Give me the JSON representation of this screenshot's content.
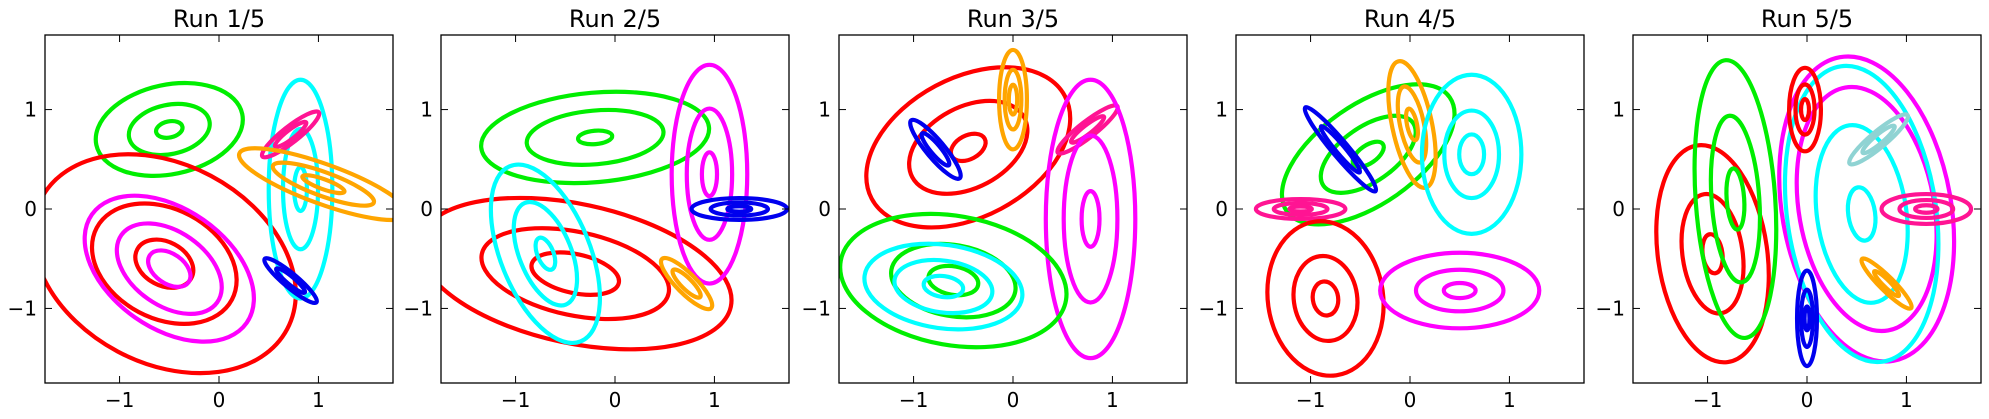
{
  "chart_data": [
    {
      "type": "contour",
      "title": "Run 1/5",
      "xlim": [
        -1.75,
        1.75
      ],
      "ylim": [
        -1.75,
        1.75
      ],
      "xticks": [
        -1,
        0,
        1
      ],
      "yticks": [
        -1,
        0,
        1
      ],
      "xtick_labels": [
        "−1",
        "0",
        "1"
      ],
      "ytick_labels": [
        "−1",
        "0",
        "1"
      ],
      "components": [
        {
          "color": "#00ee00",
          "center": [
            -0.5,
            0.8
          ],
          "rx": 0.75,
          "ry": 0.45,
          "angle_deg": 12,
          "scales": [
            1,
            0.55,
            0.18
          ]
        },
        {
          "color": "#ff0000",
          "center": [
            -0.55,
            -0.55
          ],
          "rx": 1.4,
          "ry": 1.0,
          "angle_deg": -28,
          "scales": [
            1,
            0.55,
            0.22
          ]
        },
        {
          "color": "#ff00ff",
          "center": [
            -0.5,
            -0.6
          ],
          "rx": 0.95,
          "ry": 0.6,
          "angle_deg": -35,
          "scales": [
            1,
            0.62,
            0.25
          ]
        },
        {
          "color": "#00ffff",
          "center": [
            0.82,
            0.2
          ],
          "rx": 0.32,
          "ry": 1.1,
          "angle_deg": 0,
          "scales": [
            1,
            0.55,
            0.2
          ]
        },
        {
          "color": "#ff1493",
          "center": [
            0.72,
            0.75
          ],
          "rx": 0.36,
          "ry": 0.08,
          "angle_deg": 38,
          "scales": [
            1,
            0.55
          ]
        },
        {
          "color": "#ffa500",
          "center": [
            1.05,
            0.25
          ],
          "rx": 0.9,
          "ry": 0.2,
          "angle_deg": -20,
          "scales": [
            1,
            0.6,
            0.25
          ]
        },
        {
          "color": "#0000ee",
          "center": [
            0.72,
            -0.72
          ],
          "rx": 0.34,
          "ry": 0.07,
          "angle_deg": -40,
          "scales": [
            1,
            0.55
          ]
        }
      ]
    },
    {
      "type": "contour",
      "title": "Run 2/5",
      "xlim": [
        -1.75,
        1.75
      ],
      "ylim": [
        -1.75,
        1.75
      ],
      "xticks": [
        -1,
        0,
        1
      ],
      "yticks": [
        -1,
        0,
        1
      ],
      "xtick_labels": [
        "−1",
        "0",
        "1"
      ],
      "ytick_labels": [
        "−1",
        "0",
        "1"
      ],
      "components": [
        {
          "color": "#00ee00",
          "center": [
            -0.2,
            0.72
          ],
          "rx": 1.15,
          "ry": 0.45,
          "angle_deg": 5,
          "scales": [
            1,
            0.6,
            0.15
          ]
        },
        {
          "color": "#ff0000",
          "center": [
            -0.4,
            -0.65
          ],
          "rx": 1.6,
          "ry": 0.7,
          "angle_deg": -12,
          "scales": [
            1,
            0.6,
            0.28
          ]
        },
        {
          "color": "#00ffff",
          "center": [
            -0.7,
            -0.45
          ],
          "rx": 0.45,
          "ry": 0.95,
          "angle_deg": 22,
          "scales": [
            1,
            0.58,
            0.18
          ]
        },
        {
          "color": "#ff00ff",
          "center": [
            0.95,
            0.35
          ],
          "rx": 0.38,
          "ry": 1.1,
          "angle_deg": 0,
          "scales": [
            1,
            0.6,
            0.2
          ]
        },
        {
          "color": "#ffa500",
          "center": [
            0.72,
            -0.75
          ],
          "rx": 0.35,
          "ry": 0.1,
          "angle_deg": -45,
          "scales": [
            1,
            0.55
          ]
        },
        {
          "color": "#0000ee",
          "center": [
            1.25,
            0.0
          ],
          "rx": 0.48,
          "ry": 0.11,
          "angle_deg": 0,
          "scales": [
            1,
            0.6,
            0.25
          ]
        }
      ]
    },
    {
      "type": "contour",
      "title": "Run 3/5",
      "xlim": [
        -1.75,
        1.75
      ],
      "ylim": [
        -1.75,
        1.75
      ],
      "xticks": [
        -1,
        0,
        1
      ],
      "yticks": [
        -1,
        0,
        1
      ],
      "xtick_labels": [
        "−1",
        "0",
        "1"
      ],
      "ytick_labels": [
        "−1",
        "0",
        "1"
      ],
      "components": [
        {
          "color": "#ff0000",
          "center": [
            -0.45,
            0.62
          ],
          "rx": 1.1,
          "ry": 0.7,
          "angle_deg": 28,
          "scales": [
            1,
            0.58,
            0.17
          ]
        },
        {
          "color": "#0000ee",
          "center": [
            -0.78,
            0.6
          ],
          "rx": 0.38,
          "ry": 0.09,
          "angle_deg": -50,
          "scales": [
            1,
            0.55
          ]
        },
        {
          "color": "#ffa500",
          "center": [
            0.0,
            1.1
          ],
          "rx": 0.14,
          "ry": 0.5,
          "angle_deg": 0,
          "scales": [
            1,
            0.6,
            0.3
          ]
        },
        {
          "color": "#ff1493",
          "center": [
            0.75,
            0.8
          ],
          "rx": 0.38,
          "ry": 0.08,
          "angle_deg": 38,
          "scales": [
            1,
            0.55
          ]
        },
        {
          "color": "#ff00ff",
          "center": [
            0.78,
            -0.1
          ],
          "rx": 0.45,
          "ry": 1.4,
          "angle_deg": 0,
          "scales": [
            1,
            0.6,
            0.2
          ]
        },
        {
          "color": "#00ee00",
          "center": [
            -0.6,
            -0.72
          ],
          "rx": 1.15,
          "ry": 0.65,
          "angle_deg": -10,
          "scales": [
            1,
            0.55,
            0.22
          ]
        },
        {
          "color": "#00ffff",
          "center": [
            -0.7,
            -0.78
          ],
          "rx": 0.8,
          "ry": 0.42,
          "angle_deg": -8,
          "scales": [
            1,
            0.62,
            0.25
          ]
        }
      ]
    },
    {
      "type": "contour",
      "title": "Run 4/5",
      "xlim": [
        -1.75,
        1.75
      ],
      "ylim": [
        -1.75,
        1.75
      ],
      "xticks": [
        -1,
        0,
        1
      ],
      "yticks": [
        -1,
        0,
        1
      ],
      "xtick_labels": [
        "−1",
        "0",
        "1"
      ],
      "ytick_labels": [
        "−1",
        "0",
        "1"
      ],
      "components": [
        {
          "color": "#00ee00",
          "center": [
            -0.42,
            0.55
          ],
          "rx": 1.0,
          "ry": 0.5,
          "angle_deg": 35,
          "scales": [
            1,
            0.55,
            0.18
          ]
        },
        {
          "color": "#0000ee",
          "center": [
            -0.7,
            0.6
          ],
          "rx": 0.55,
          "ry": 0.08,
          "angle_deg": -50,
          "scales": [
            1,
            0.55
          ]
        },
        {
          "color": "#ffa500",
          "center": [
            0.02,
            0.85
          ],
          "rx": 0.2,
          "ry": 0.65,
          "angle_deg": 12,
          "scales": [
            1,
            0.6,
            0.25
          ]
        },
        {
          "color": "#00ffff",
          "center": [
            0.62,
            0.55
          ],
          "rx": 0.5,
          "ry": 0.8,
          "angle_deg": 0,
          "scales": [
            1,
            0.55,
            0.25
          ]
        },
        {
          "color": "#ff1493",
          "center": [
            -1.1,
            0.0
          ],
          "rx": 0.45,
          "ry": 0.1,
          "angle_deg": 0,
          "scales": [
            1,
            0.6,
            0.25
          ]
        },
        {
          "color": "#ff0000",
          "center": [
            -0.85,
            -0.9
          ],
          "rx": 0.58,
          "ry": 0.78,
          "angle_deg": 8,
          "scales": [
            1,
            0.55,
            0.22
          ]
        },
        {
          "color": "#ff00ff",
          "center": [
            0.5,
            -0.82
          ],
          "rx": 0.8,
          "ry": 0.38,
          "angle_deg": 0,
          "scales": [
            1,
            0.55,
            0.2
          ]
        }
      ]
    },
    {
      "type": "contour",
      "title": "Run 5/5",
      "xlim": [
        -1.75,
        1.75
      ],
      "ylim": [
        -1.75,
        1.75
      ],
      "xticks": [
        -1,
        0,
        1
      ],
      "yticks": [
        -1,
        0,
        1
      ],
      "xtick_labels": [
        "−1",
        "0",
        "1"
      ],
      "ytick_labels": [
        "−1",
        "0",
        "1"
      ],
      "components": [
        {
          "color": "#ff0000",
          "center": [
            -0.95,
            -0.45
          ],
          "rx": 0.55,
          "ry": 1.1,
          "angle_deg": 8,
          "scales": [
            1,
            0.55,
            0.18
          ]
        },
        {
          "color": "#00ee00",
          "center": [
            -0.72,
            0.1
          ],
          "rx": 0.4,
          "ry": 1.4,
          "angle_deg": 4,
          "scales": [
            1,
            0.6,
            0.22
          ]
        },
        {
          "color": "#ff00ff",
          "center": [
            0.6,
            0.0
          ],
          "rx": 0.85,
          "ry": 1.55,
          "angle_deg": 10,
          "scales": [
            1,
            0.8
          ]
        },
        {
          "color": "#00ffff",
          "center": [
            0.55,
            -0.05
          ],
          "rx": 0.75,
          "ry": 1.5,
          "angle_deg": 8,
          "scales": [
            1,
            0.6,
            0.18
          ]
        },
        {
          "color": "#ff0000",
          "center": [
            -0.02,
            1.0
          ],
          "rx": 0.16,
          "ry": 0.42,
          "angle_deg": 0,
          "scales": [
            1,
            0.6,
            0.25
          ]
        },
        {
          "color": "#8fd3d3",
          "center": [
            0.72,
            0.7
          ],
          "rx": 0.38,
          "ry": 0.08,
          "angle_deg": 40,
          "scales": [
            1,
            0.55
          ]
        },
        {
          "color": "#ff1493",
          "center": [
            1.2,
            0.0
          ],
          "rx": 0.45,
          "ry": 0.15,
          "angle_deg": 0,
          "scales": [
            1,
            0.6,
            0.25
          ]
        },
        {
          "color": "#ffa500",
          "center": [
            0.8,
            -0.75
          ],
          "rx": 0.35,
          "ry": 0.07,
          "angle_deg": -45,
          "scales": [
            1,
            0.5
          ]
        },
        {
          "color": "#0000ee",
          "center": [
            0.0,
            -1.1
          ],
          "rx": 0.1,
          "ry": 0.48,
          "angle_deg": 0,
          "scales": [
            1,
            0.6,
            0.25
          ]
        }
      ]
    }
  ]
}
